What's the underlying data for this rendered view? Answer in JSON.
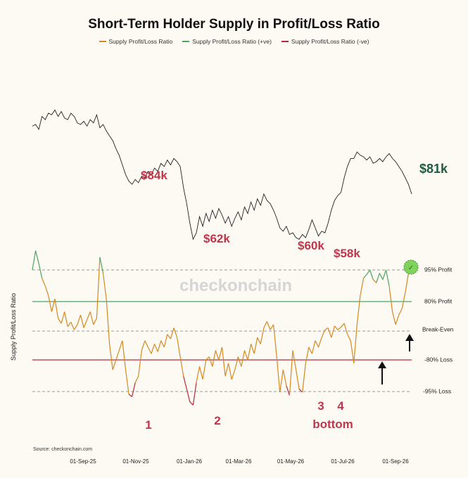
{
  "title": "Short-Term Holder Supply in Profit/Loss Ratio",
  "legend": [
    {
      "label": "Supply Profit/Loss Ratio",
      "color": "#d48a1f"
    },
    {
      "label": "Supply Profit/Loss Ratio (+ve)",
      "color": "#4ea360"
    },
    {
      "label": "Supply Profit/Loss Ratio (-ve)",
      "color": "#b8283c"
    }
  ],
  "watermark": "checkonchain",
  "source": "Source:  checkonchain.com",
  "chart_data": {
    "type": "line",
    "ylabel": "Supply Profit/Loss Ratio",
    "xticks": [
      "01-Sep-25",
      "01-Nov-25",
      "01-Jan-26",
      "01-Mar-26",
      "01-May-26",
      "01-Jul-26",
      "01-Sep-26"
    ],
    "reference_lines": [
      {
        "label": "95% Profit",
        "value": 0.95,
        "style": "dashed"
      },
      {
        "label": "80% Profit",
        "value": 0.8,
        "style": "solid",
        "color": "#4ea360"
      },
      {
        "label": "Break-Even",
        "value": 0.0,
        "style": "dashed"
      },
      {
        "label": "-80% Loss",
        "value": -0.8,
        "style": "solid",
        "color": "#b8283c"
      },
      {
        "label": "-95% Loss",
        "value": -0.95,
        "style": "dashed"
      }
    ],
    "price_annotations": [
      "$84k",
      "$62k",
      "$60k",
      "$58k",
      "$81k"
    ],
    "bottom_annotations": [
      "1",
      "2",
      "3",
      "4",
      "bottom"
    ],
    "circle_marker": "✓",
    "price_series": [
      [
        0,
        0.72
      ],
      [
        2,
        0.73
      ],
      [
        4,
        0.7
      ],
      [
        6,
        0.78
      ],
      [
        8,
        0.76
      ],
      [
        10,
        0.8
      ],
      [
        12,
        0.79
      ],
      [
        14,
        0.82
      ],
      [
        16,
        0.78
      ],
      [
        18,
        0.81
      ],
      [
        20,
        0.77
      ],
      [
        22,
        0.76
      ],
      [
        24,
        0.8
      ],
      [
        26,
        0.78
      ],
      [
        28,
        0.74
      ],
      [
        30,
        0.73
      ],
      [
        32,
        0.75
      ],
      [
        34,
        0.72
      ],
      [
        36,
        0.76
      ],
      [
        38,
        0.74
      ],
      [
        40,
        0.79
      ],
      [
        42,
        0.71
      ],
      [
        44,
        0.73
      ],
      [
        46,
        0.69
      ],
      [
        48,
        0.66
      ],
      [
        50,
        0.63
      ],
      [
        52,
        0.58
      ],
      [
        54,
        0.54
      ],
      [
        56,
        0.48
      ],
      [
        58,
        0.42
      ],
      [
        60,
        0.38
      ],
      [
        62,
        0.36
      ],
      [
        64,
        0.39
      ],
      [
        66,
        0.37
      ],
      [
        68,
        0.41
      ],
      [
        70,
        0.4
      ],
      [
        72,
        0.44
      ],
      [
        74,
        0.42
      ],
      [
        76,
        0.46
      ],
      [
        78,
        0.44
      ],
      [
        80,
        0.49
      ],
      [
        82,
        0.47
      ],
      [
        84,
        0.51
      ],
      [
        86,
        0.48
      ],
      [
        88,
        0.52
      ],
      [
        90,
        0.5
      ],
      [
        92,
        0.47
      ],
      [
        94,
        0.34
      ],
      [
        96,
        0.24
      ],
      [
        98,
        0.12
      ],
      [
        100,
        0.02
      ],
      [
        102,
        0.06
      ],
      [
        104,
        0.16
      ],
      [
        106,
        0.1
      ],
      [
        108,
        0.18
      ],
      [
        110,
        0.13
      ],
      [
        112,
        0.2
      ],
      [
        114,
        0.15
      ],
      [
        116,
        0.21
      ],
      [
        118,
        0.17
      ],
      [
        120,
        0.12
      ],
      [
        122,
        0.16
      ],
      [
        124,
        0.1
      ],
      [
        126,
        0.15
      ],
      [
        128,
        0.19
      ],
      [
        130,
        0.14
      ],
      [
        132,
        0.22
      ],
      [
        134,
        0.18
      ],
      [
        136,
        0.25
      ],
      [
        138,
        0.2
      ],
      [
        140,
        0.27
      ],
      [
        142,
        0.23
      ],
      [
        144,
        0.3
      ],
      [
        146,
        0.26
      ],
      [
        148,
        0.24
      ],
      [
        150,
        0.2
      ],
      [
        152,
        0.15
      ],
      [
        154,
        0.09
      ],
      [
        156,
        0.07
      ],
      [
        158,
        0.1
      ],
      [
        160,
        0.05
      ],
      [
        162,
        0.06
      ],
      [
        164,
        0.03
      ],
      [
        166,
        0.02
      ],
      [
        168,
        0.05
      ],
      [
        170,
        0.03
      ],
      [
        172,
        0.08
      ],
      [
        174,
        0.14
      ],
      [
        176,
        0.09
      ],
      [
        178,
        0.04
      ],
      [
        180,
        0.07
      ],
      [
        182,
        0.06
      ],
      [
        184,
        0.12
      ],
      [
        186,
        0.2
      ],
      [
        188,
        0.26
      ],
      [
        190,
        0.29
      ],
      [
        192,
        0.31
      ],
      [
        194,
        0.4
      ],
      [
        196,
        0.47
      ],
      [
        198,
        0.52
      ],
      [
        200,
        0.52
      ],
      [
        202,
        0.56
      ],
      [
        204,
        0.54
      ],
      [
        206,
        0.53
      ],
      [
        208,
        0.51
      ],
      [
        210,
        0.53
      ],
      [
        212,
        0.49
      ],
      [
        214,
        0.5
      ],
      [
        216,
        0.52
      ],
      [
        218,
        0.5
      ],
      [
        220,
        0.53
      ],
      [
        222,
        0.55
      ],
      [
        224,
        0.52
      ],
      [
        226,
        0.5
      ],
      [
        228,
        0.47
      ],
      [
        230,
        0.44
      ],
      [
        232,
        0.4
      ],
      [
        234,
        0.36
      ],
      [
        236,
        0.3
      ]
    ],
    "ratio_series": [
      [
        0,
        0.95
      ],
      [
        2,
        1.25
      ],
      [
        4,
        1.05
      ],
      [
        6,
        0.82
      ],
      [
        8,
        0.7
      ],
      [
        10,
        0.55
      ],
      [
        12,
        0.3
      ],
      [
        14,
        0.5
      ],
      [
        16,
        0.2
      ],
      [
        18,
        0.12
      ],
      [
        20,
        0.3
      ],
      [
        22,
        0.07
      ],
      [
        24,
        0.14
      ],
      [
        26,
        0.02
      ],
      [
        28,
        0.1
      ],
      [
        30,
        0.25
      ],
      [
        32,
        0.05
      ],
      [
        34,
        0.18
      ],
      [
        36,
        0.3
      ],
      [
        38,
        0.1
      ],
      [
        40,
        0.2
      ],
      [
        42,
        1.15
      ],
      [
        44,
        0.9
      ],
      [
        46,
        0.5
      ],
      [
        48,
        -0.2
      ],
      [
        50,
        -0.6
      ],
      [
        52,
        -0.45
      ],
      [
        54,
        -0.3
      ],
      [
        56,
        -0.15
      ],
      [
        58,
        -0.6
      ],
      [
        60,
        -0.98
      ],
      [
        62,
        -1.02
      ],
      [
        64,
        -0.8
      ],
      [
        66,
        -0.7
      ],
      [
        68,
        -0.3
      ],
      [
        70,
        -0.15
      ],
      [
        72,
        -0.25
      ],
      [
        74,
        -0.35
      ],
      [
        76,
        -0.2
      ],
      [
        78,
        -0.32
      ],
      [
        80,
        -0.15
      ],
      [
        82,
        -0.25
      ],
      [
        84,
        -0.05
      ],
      [
        86,
        -0.12
      ],
      [
        88,
        0.05
      ],
      [
        90,
        -0.1
      ],
      [
        92,
        -0.4
      ],
      [
        94,
        -0.7
      ],
      [
        96,
        -0.9
      ],
      [
        98,
        -1.1
      ],
      [
        100,
        -1.15
      ],
      [
        102,
        -0.8
      ],
      [
        104,
        -0.55
      ],
      [
        106,
        -0.75
      ],
      [
        108,
        -0.45
      ],
      [
        110,
        -0.4
      ],
      [
        112,
        -0.55
      ],
      [
        114,
        -0.3
      ],
      [
        116,
        -0.45
      ],
      [
        118,
        -0.25
      ],
      [
        120,
        -0.7
      ],
      [
        122,
        -0.5
      ],
      [
        124,
        -0.75
      ],
      [
        126,
        -0.6
      ],
      [
        128,
        -0.4
      ],
      [
        130,
        -0.55
      ],
      [
        132,
        -0.3
      ],
      [
        134,
        -0.45
      ],
      [
        136,
        -0.2
      ],
      [
        138,
        -0.35
      ],
      [
        140,
        -0.1
      ],
      [
        142,
        -0.2
      ],
      [
        144,
        0.05
      ],
      [
        146,
        0.15
      ],
      [
        148,
        0.02
      ],
      [
        150,
        0.1
      ],
      [
        152,
        -0.4
      ],
      [
        154,
        -0.95
      ],
      [
        156,
        -0.6
      ],
      [
        158,
        -0.85
      ],
      [
        160,
        -1.0
      ],
      [
        162,
        -0.3
      ],
      [
        164,
        -0.6
      ],
      [
        166,
        -0.9
      ],
      [
        168,
        -0.95
      ],
      [
        170,
        -0.5
      ],
      [
        172,
        -0.25
      ],
      [
        174,
        -0.35
      ],
      [
        176,
        -0.15
      ],
      [
        178,
        -0.25
      ],
      [
        180,
        -0.1
      ],
      [
        182,
        0.02
      ],
      [
        184,
        0.05
      ],
      [
        186,
        -0.1
      ],
      [
        188,
        0.08
      ],
      [
        190,
        0.02
      ],
      [
        192,
        0.06
      ],
      [
        194,
        0.12
      ],
      [
        196,
        -0.05
      ],
      [
        198,
        -0.15
      ],
      [
        200,
        -0.5
      ],
      [
        202,
        0.1
      ],
      [
        204,
        0.55
      ],
      [
        206,
        0.82
      ],
      [
        208,
        0.88
      ],
      [
        210,
        0.95
      ],
      [
        212,
        0.8
      ],
      [
        214,
        0.75
      ],
      [
        216,
        0.9
      ],
      [
        218,
        0.8
      ],
      [
        220,
        0.95
      ],
      [
        222,
        0.7
      ],
      [
        224,
        0.3
      ],
      [
        226,
        0.1
      ],
      [
        228,
        0.25
      ],
      [
        230,
        0.35
      ],
      [
        232,
        0.6
      ],
      [
        234,
        0.9
      ],
      [
        236,
        1.02
      ]
    ]
  }
}
